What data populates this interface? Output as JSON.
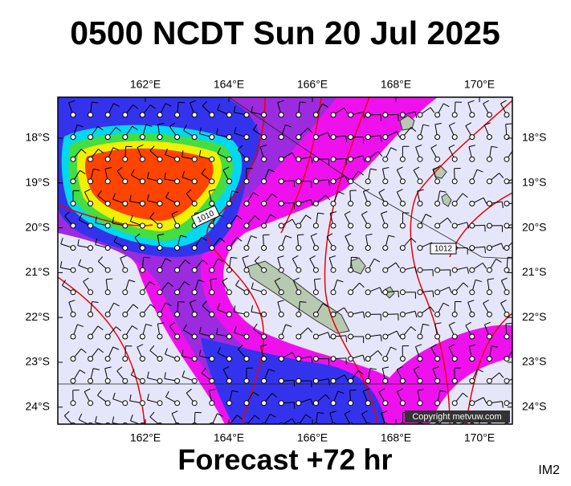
{
  "header": {
    "title": "0500 NCDT Sun 20 Jul 2025"
  },
  "map": {
    "lon_labels": [
      "162°E",
      "164°E",
      "166°E",
      "168°E",
      "170°E"
    ],
    "lat_labels": [
      "18°S",
      "19°S",
      "20°S",
      "21°S",
      "22°S",
      "23°S",
      "24°S"
    ],
    "isobar_labels": [
      "1010",
      "1012"
    ],
    "credit": "Copyright metvuw.com"
  },
  "footer": {
    "caption": "Forecast +72 hr",
    "code": "IM2"
  }
}
